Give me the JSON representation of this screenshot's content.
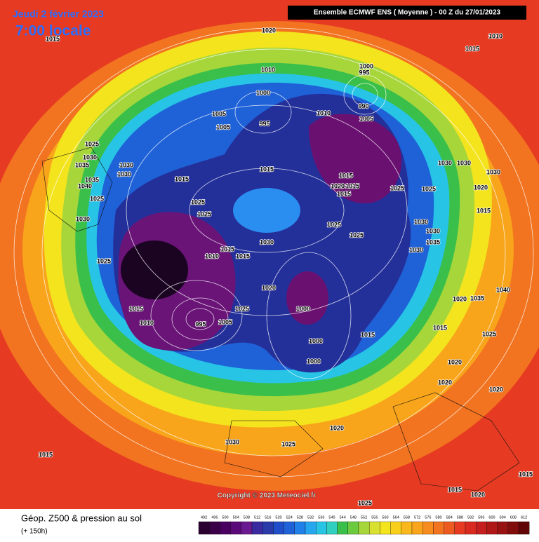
{
  "header": {
    "date": "Jeudi 2 février 2023",
    "time": "7:00 locale",
    "model": "Ensemble ECMWF ENS  ( Moyenne )  - 00 Z du 27/01/2023"
  },
  "map": {
    "pressure_labels": [
      "1020",
      "1015",
      "1010",
      "1015",
      "1000",
      "995",
      "1010",
      "1000",
      "990",
      "1005",
      "995",
      "1010",
      "1005",
      "1005",
      "1025",
      "1030",
      "1035",
      "1030",
      "1030",
      "1015",
      "1015",
      "1035",
      "1040",
      "1030",
      "1030",
      "1030",
      "1015",
      "1020",
      "1015",
      "1015",
      "1025",
      "1025",
      "1020",
      "1025",
      "1025",
      "1025",
      "1015",
      "1030",
      "1025",
      "1025",
      "1030",
      "1030",
      "1030",
      "1035",
      "1030",
      "1015",
      "1010",
      "1015",
      "1025",
      "1020",
      "1000",
      "1025",
      "1015",
      "1010",
      "995",
      "1005",
      "1000",
      "1000",
      "1015",
      "1015",
      "1020",
      "1035",
      "1040",
      "1020",
      "1020",
      "1020",
      "1025",
      "1020",
      "1030",
      "1025",
      "1015",
      "1015",
      "1015",
      "1020",
      "1025"
    ]
  },
  "copyright": "Copyright © 2023 Meteociel.fr",
  "footer": {
    "title": "Géop. Z500 & pression au sol",
    "lead": "(+ 150h)"
  },
  "colorbar": {
    "labels": [
      "492",
      "496",
      "500",
      "504",
      "508",
      "512",
      "516",
      "520",
      "524",
      "528",
      "532",
      "536",
      "540",
      "544",
      "548",
      "552",
      "556",
      "560",
      "564",
      "568",
      "572",
      "576",
      "580",
      "584",
      "588",
      "592",
      "596",
      "600",
      "604",
      "608",
      "612"
    ]
  }
}
